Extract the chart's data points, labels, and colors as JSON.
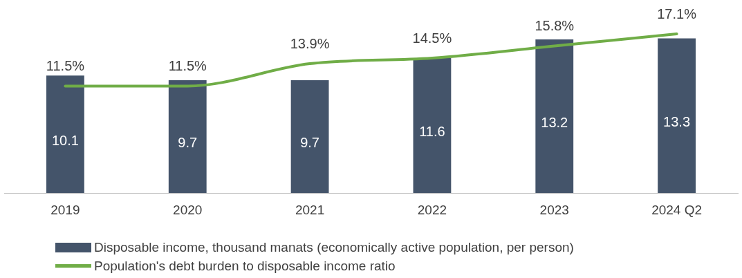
{
  "chart_data": {
    "type": "bar",
    "categories": [
      "2019",
      "2020",
      "2021",
      "2022",
      "2023",
      "2024 Q2"
    ],
    "series": [
      {
        "name": "Disposable income, thousand manats (economically active population, per person)",
        "color": "#44546a",
        "values": [
          10.1,
          9.7,
          9.7,
          11.6,
          13.2,
          13.3
        ]
      },
      {
        "name": "Population's debt burden to disposable income ratio",
        "type": "line",
        "axis": "y2",
        "color": "#70ad47",
        "values": [
          11.5,
          11.5,
          13.9,
          14.5,
          15.8,
          17.1
        ],
        "value_labels": [
          "11.5%",
          "11.5%",
          "13.9%",
          "14.5%",
          "15.8%",
          "17.1%"
        ]
      }
    ],
    "tick_labels": "x",
    "grid": false,
    "legend": "bottom",
    "data_labels": true,
    "marker": "none"
  }
}
